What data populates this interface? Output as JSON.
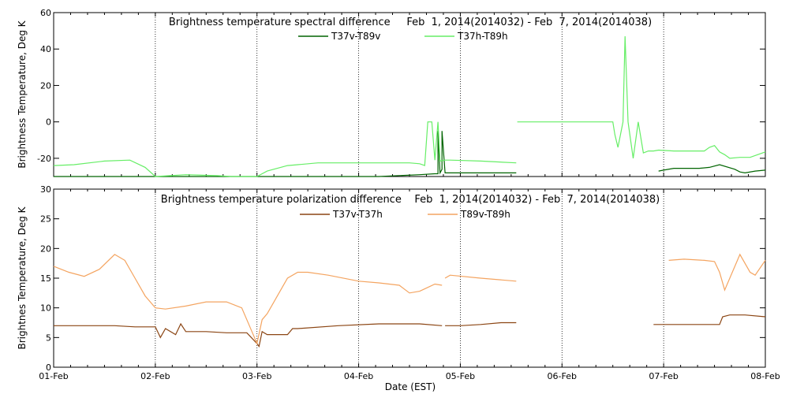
{
  "chart_data": [
    {
      "type": "line",
      "title": "Brightness temperature spectral difference     Feb  1, 2014(2014032) - Feb  7, 2014(2014038)",
      "ylabel": "Brightness Temperature, Deg K",
      "xlabel": "",
      "xlim": [
        0,
        7
      ],
      "ylim": [
        -30,
        60
      ],
      "yticks": [
        -20,
        0,
        20,
        40,
        60
      ],
      "ytick_labels": [
        "-20",
        "0",
        "20",
        "40",
        "60"
      ],
      "grid": "vertical dotted at day boundaries",
      "legend_position": "top-center",
      "series": [
        {
          "name": "T37v-T89v",
          "color": "#006400",
          "x": [
            0.0,
            0.3,
            0.6,
            1.0,
            1.3,
            1.6,
            2.0,
            2.4,
            2.8,
            3.0,
            3.2,
            3.4,
            3.6,
            3.75,
            3.78,
            3.78,
            3.8,
            3.82,
            3.82,
            3.85,
            3.9,
            4.0,
            4.3,
            4.55
          ],
          "y": [
            -30.5,
            -30.5,
            -30.8,
            -31,
            -31,
            -31,
            -30.5,
            -30.5,
            -30.5,
            -30.2,
            -30,
            -29.5,
            -29,
            -28.5,
            -28.5,
            -5,
            -28,
            -26,
            -5,
            -28,
            -28,
            -28,
            -28,
            -28
          ],
          "x2": [
            5.95,
            6.0,
            6.1,
            6.2,
            6.35,
            6.45,
            6.55,
            6.7,
            6.75,
            6.8,
            6.9,
            7.0
          ],
          "y2": [
            -27,
            -26.5,
            -25.5,
            -25.5,
            -25.5,
            -25,
            -23.5,
            -26,
            -27.5,
            -28,
            -27,
            -26.5
          ]
        },
        {
          "name": "T37h-T89h",
          "color": "#66ee66",
          "x": [
            0.0,
            0.2,
            0.5,
            0.75,
            0.9,
            1.0,
            1.3,
            1.6,
            1.75,
            1.9,
            2.0,
            2.1,
            2.3,
            2.4,
            2.6,
            3.0,
            3.3,
            3.5,
            3.6,
            3.65,
            3.68,
            3.72,
            3.75,
            3.78,
            3.8,
            3.85,
            3.9,
            4.2,
            4.55
          ],
          "y": [
            -24,
            -23.5,
            -21.5,
            -21,
            -25,
            -31,
            -29,
            -29.5,
            -31,
            -30,
            -30,
            -27,
            -24,
            -23.5,
            -22.5,
            -22.5,
            -22.5,
            -22.5,
            -23,
            -24,
            0,
            0,
            -21,
            0,
            -21.5,
            -21,
            -21,
            -21.5,
            -22.5
          ],
          "x2": [
            4.56,
            5.5,
            5.52,
            5.55,
            5.6,
            5.62,
            5.65,
            5.7,
            5.75,
            5.8,
            5.85,
            5.9,
            5.95,
            6.1,
            6.3,
            6.4,
            6.45,
            6.5,
            6.55,
            6.6,
            6.65,
            6.75,
            6.85,
            7.0
          ],
          "y2": [
            0,
            0,
            -7,
            -14,
            0,
            47,
            0,
            -20,
            0,
            -17,
            -16,
            -16,
            -15.5,
            -16,
            -16,
            -16,
            -14,
            -13,
            -16.5,
            -18,
            -20,
            -19.5,
            -19.5,
            -16.5
          ]
        }
      ],
      "x_tick_labels": [
        "01-Feb",
        "02-Feb",
        "03-Feb",
        "04-Feb",
        "05-Feb",
        "06-Feb",
        "07-Feb",
        "08-Feb"
      ]
    },
    {
      "type": "line",
      "title": "Brightness temperature polarization difference    Feb  1, 2014(2014032) - Feb  7, 2014(2014038)",
      "ylabel": "Brightnes Temperature, Deg K",
      "xlabel": "Date (EST)",
      "xlim": [
        0,
        7
      ],
      "ylim": [
        0,
        30
      ],
      "yticks": [
        0,
        5,
        10,
        15,
        20,
        25,
        30
      ],
      "ytick_labels": [
        "0",
        "5",
        "10",
        "15",
        "20",
        "25",
        "30"
      ],
      "grid": "vertical dotted at day boundaries",
      "legend_position": "top-center",
      "series": [
        {
          "name": "T37v-T37h",
          "color": "#8b4513",
          "x": [
            0.0,
            0.3,
            0.6,
            0.8,
            1.0,
            1.05,
            1.1,
            1.2,
            1.25,
            1.3,
            1.35,
            1.5,
            1.7,
            1.9,
            2.0,
            2.02,
            2.05,
            2.1,
            2.3,
            2.35,
            2.4,
            2.8,
            3.2,
            3.6,
            3.82
          ],
          "y": [
            7,
            7,
            7,
            6.8,
            6.8,
            5,
            6.5,
            5.5,
            7.3,
            6,
            6,
            6,
            5.8,
            5.8,
            4,
            3.5,
            6,
            5.5,
            5.5,
            6.5,
            6.5,
            7,
            7.3,
            7.3,
            7
          ],
          "x2": [
            3.85,
            4.0,
            4.2,
            4.4,
            4.55
          ],
          "y2": [
            7,
            7,
            7.2,
            7.5,
            7.5
          ],
          "x3": [
            5.9,
            5.9,
            6.05,
            6.3,
            6.5,
            6.55,
            6.58,
            6.65,
            6.8,
            7.0
          ],
          "y3": [
            7.2,
            7.2,
            7.2,
            7.2,
            7.2,
            7.2,
            8.5,
            8.8,
            8.8,
            8.5
          ]
        },
        {
          "name": "T89v-T89h",
          "color": "#f4a460",
          "x": [
            0.0,
            0.15,
            0.3,
            0.45,
            0.6,
            0.7,
            0.8,
            0.9,
            1.0,
            1.1,
            1.3,
            1.5,
            1.7,
            1.85,
            1.95,
            2.0,
            2.05,
            2.1,
            2.2,
            2.3,
            2.4,
            2.5,
            2.7,
            3.0,
            3.2,
            3.4,
            3.5,
            3.6,
            3.65,
            3.75,
            3.82
          ],
          "y": [
            17,
            16,
            15.3,
            16.5,
            19,
            18,
            15,
            12,
            10,
            9.8,
            10.3,
            11,
            11,
            10,
            6,
            4,
            8,
            9,
            12,
            15,
            16,
            16,
            15.5,
            14.5,
            14.2,
            13.8,
            12.5,
            12.8,
            13.2,
            14,
            13.8
          ],
          "x2": [
            3.85,
            3.9,
            4.2,
            4.55
          ],
          "y2": [
            15,
            15.5,
            15,
            14.5
          ],
          "x3": [
            6.05,
            6.2,
            6.4,
            6.5,
            6.55,
            6.6,
            6.75,
            6.85,
            6.9,
            7.0
          ],
          "y3": [
            18,
            18.2,
            18,
            17.8,
            16,
            13,
            19,
            16,
            15.5,
            18
          ]
        }
      ],
      "x_tick_labels": [
        "01-Feb",
        "02-Feb",
        "03-Feb",
        "04-Feb",
        "05-Feb",
        "06-Feb",
        "07-Feb",
        "08-Feb"
      ]
    }
  ]
}
